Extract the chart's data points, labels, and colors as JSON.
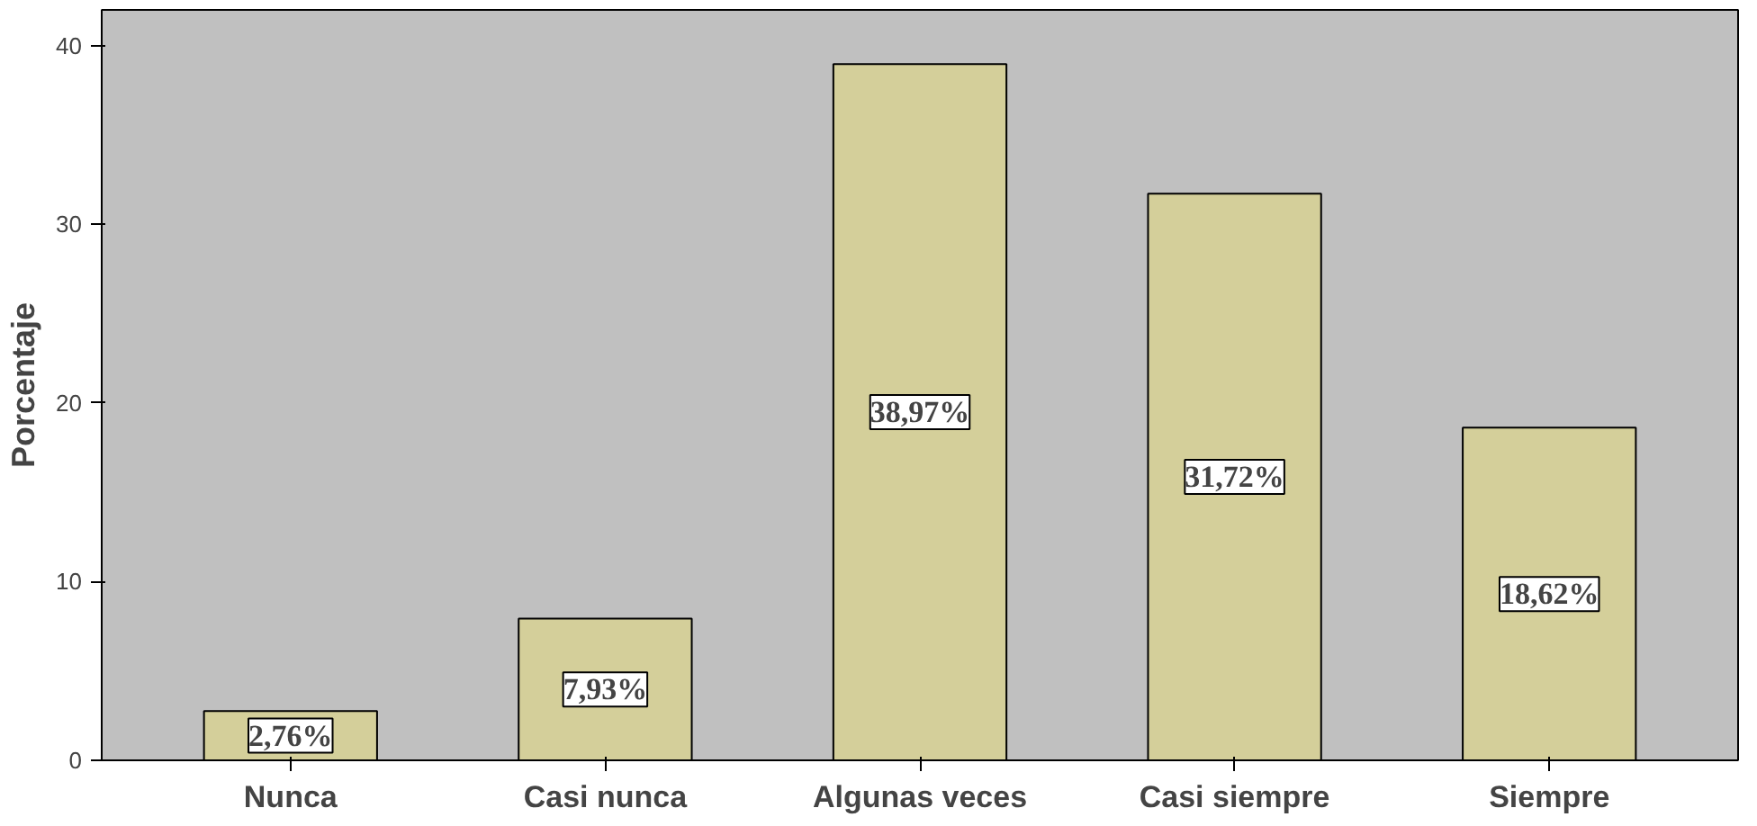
{
  "chart_data": {
    "type": "bar",
    "ylabel": "Porcentaje",
    "categories": [
      "Nunca",
      "Casi nunca",
      "Algunas veces",
      "Casi siempre",
      "Siempre"
    ],
    "values": [
      2.76,
      7.93,
      38.97,
      31.72,
      18.62
    ],
    "value_labels": [
      "2,76%",
      "7,93%",
      "38,97%",
      "31,72%",
      "18,62%"
    ],
    "color": "#d4cf9a",
    "ylim": [
      0,
      42
    ],
    "yticks": [
      0,
      10,
      20,
      30,
      40
    ],
    "grid": false
  }
}
